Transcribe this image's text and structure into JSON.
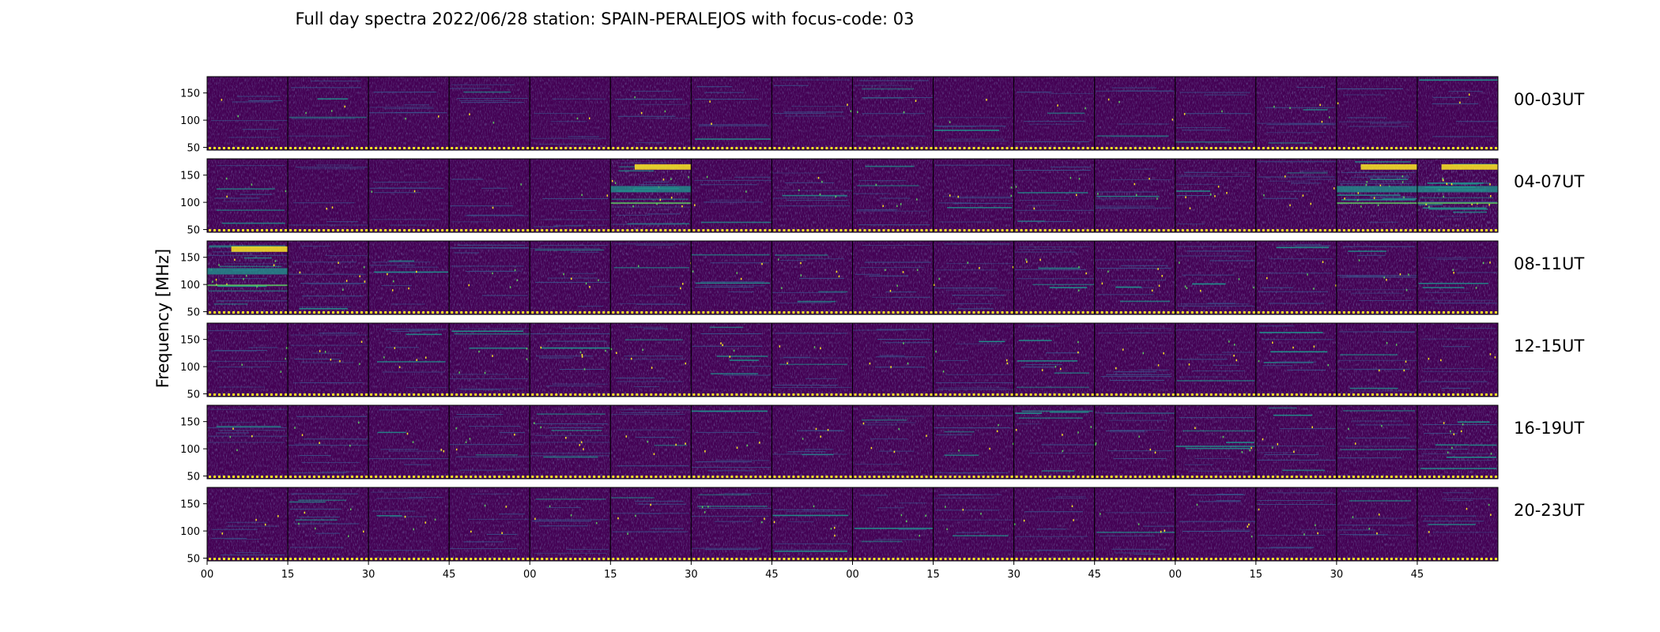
{
  "title": "Full day spectra 2022/06/28 station: SPAIN-PERALEJOS with focus-code: 03",
  "chart_data": {
    "type": "heatmap",
    "title": "Full day spectra 2022/06/28 station: SPAIN-PERALEJOS with focus-code: 03",
    "ylabel": "Frequency [MHz]",
    "ylim": [
      45,
      180
    ],
    "y_ticks": [
      "150",
      "100",
      "50"
    ],
    "y_tick_values": [
      150,
      100,
      50
    ],
    "x_ticks": [
      "00",
      "15",
      "30",
      "45",
      "00",
      "15",
      "30",
      "45",
      "00",
      "15",
      "30",
      "45",
      "00",
      "15",
      "30",
      "45"
    ],
    "x_tick_positions": [
      0,
      1,
      2,
      3,
      4,
      5,
      6,
      7,
      8,
      9,
      10,
      11,
      12,
      13,
      14,
      15
    ],
    "panels_per_row": 16,
    "rows": [
      {
        "label": "00-03UT",
        "hours": [
          0,
          1,
          2,
          3
        ],
        "activity": [
          0.15,
          0.2,
          0.15,
          0.15,
          0.15,
          0.25,
          0.15,
          0.15,
          0.25,
          0.15,
          0.15,
          0.2,
          0.15,
          0.35,
          0.15,
          0.15
        ]
      },
      {
        "label": "04-07UT",
        "hours": [
          4,
          5,
          6,
          7
        ],
        "activity": [
          0.3,
          0.15,
          0.15,
          0.15,
          0.15,
          0.9,
          0.2,
          0.35,
          0.35,
          0.3,
          0.35,
          0.35,
          0.4,
          0.45,
          0.95,
          1.0
        ]
      },
      {
        "label": "08-11UT",
        "hours": [
          8,
          9,
          10,
          11
        ],
        "activity": [
          0.85,
          0.5,
          0.35,
          0.35,
          0.35,
          0.3,
          0.3,
          0.4,
          0.35,
          0.35,
          0.4,
          0.4,
          0.45,
          0.45,
          0.45,
          0.35
        ]
      },
      {
        "label": "12-15UT",
        "hours": [
          12,
          13,
          14,
          15
        ],
        "activity": [
          0.3,
          0.4,
          0.35,
          0.4,
          0.45,
          0.4,
          0.35,
          0.3,
          0.3,
          0.3,
          0.35,
          0.35,
          0.35,
          0.35,
          0.35,
          0.3
        ]
      },
      {
        "label": "16-19UT",
        "hours": [
          16,
          17,
          18,
          19
        ],
        "activity": [
          0.35,
          0.35,
          0.3,
          0.35,
          0.45,
          0.35,
          0.3,
          0.3,
          0.35,
          0.35,
          0.35,
          0.35,
          0.4,
          0.35,
          0.3,
          0.55
        ]
      },
      {
        "label": "20-23UT",
        "hours": [
          20,
          21,
          22,
          23
        ],
        "activity": [
          0.3,
          0.45,
          0.3,
          0.3,
          0.3,
          0.3,
          0.35,
          0.35,
          0.25,
          0.25,
          0.25,
          0.3,
          0.25,
          0.25,
          0.25,
          0.25
        ]
      }
    ],
    "colormap": "viridis",
    "colors": {
      "background": "#440154",
      "mid": "#3b528b",
      "bright": "#21918c",
      "hot": "#5ec962",
      "max": "#fde725"
    },
    "grid": false,
    "legend": "none"
  }
}
